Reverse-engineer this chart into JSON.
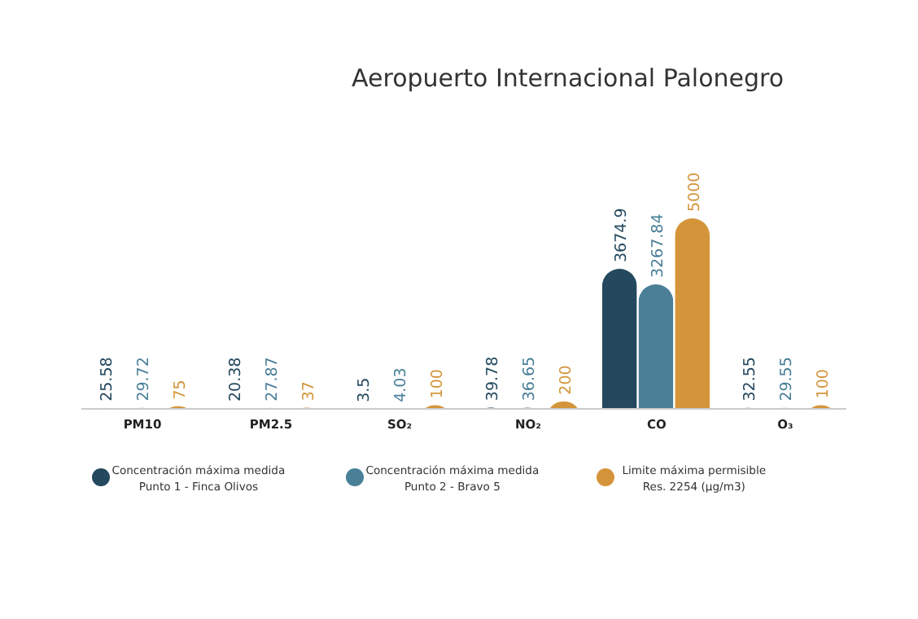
{
  "chart_data": {
    "type": "bar",
    "title": "Aeropuerto Internacional Palonegro",
    "categories": [
      "PM10",
      "PM2.5",
      "SO₂",
      "NO₂",
      "CO",
      "O₃"
    ],
    "series": [
      {
        "name": "Concentración máxima medida\nPunto 1 - Finca Olivos",
        "color": "#24495e",
        "values": [
          25.58,
          20.38,
          3.5,
          39.78,
          3674.9,
          32.55
        ]
      },
      {
        "name": "Concentración máxima medida\nPunto 2 - Bravo 5",
        "color": "#4a7f98",
        "values": [
          29.72,
          27.87,
          4.03,
          36.65,
          3267.84,
          29.55
        ]
      },
      {
        "name": "Limite máxima permisible\nRes. 2254 (µg/m3)",
        "color": "#d4953a",
        "values": [
          75,
          37,
          100,
          200,
          5000,
          100
        ]
      }
    ],
    "ylim": [
      0,
      5000
    ],
    "tick_labels": "x",
    "data_labels": true,
    "legend": "bottom"
  }
}
